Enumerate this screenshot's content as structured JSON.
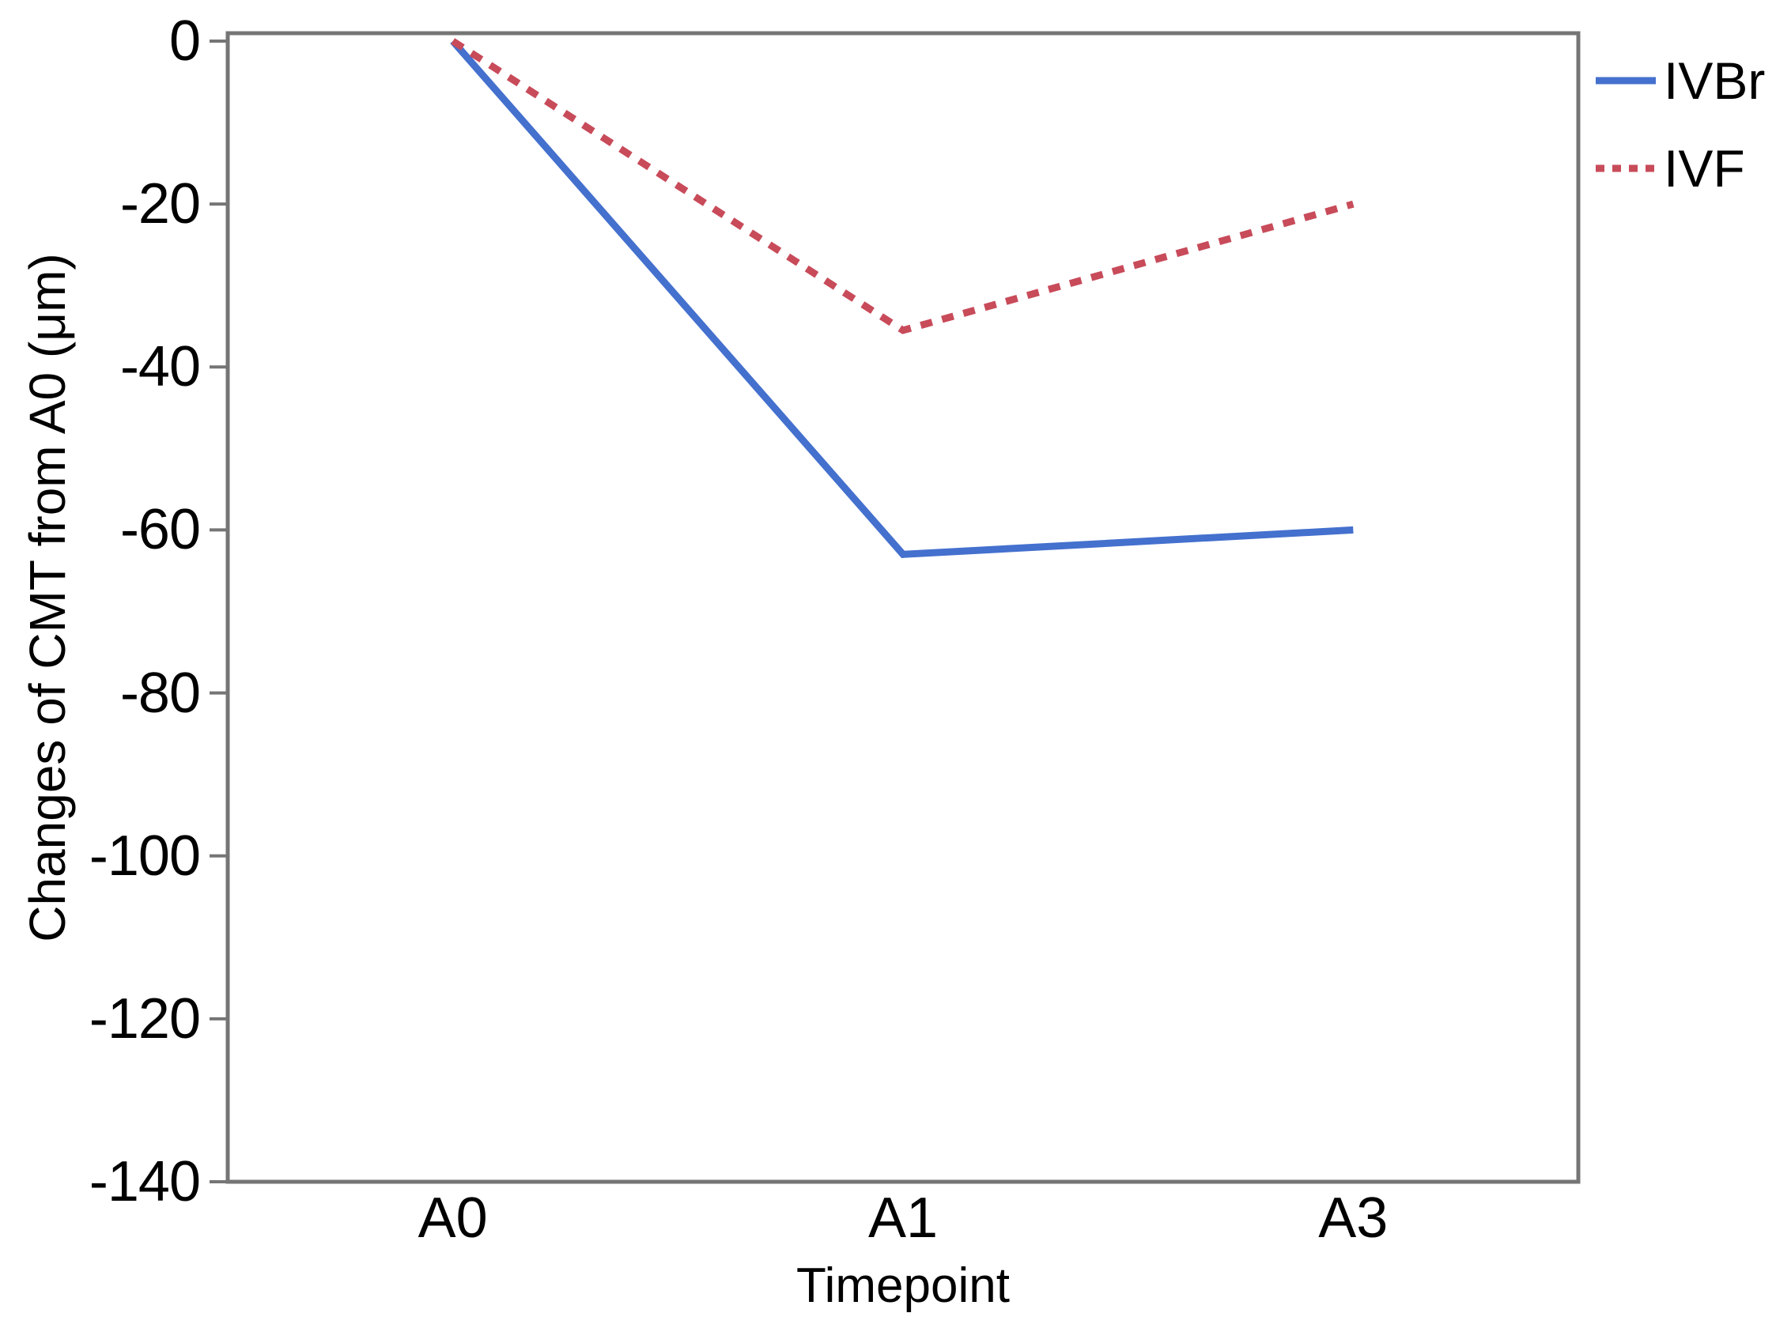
{
  "chart_data": {
    "type": "line",
    "categories": [
      "A0",
      "A1",
      "A3"
    ],
    "series": [
      {
        "name": "IVBr",
        "style": "solid",
        "color": "#4470CE",
        "values": [
          0,
          -63,
          -60
        ]
      },
      {
        "name": "IVF",
        "style": "dotted",
        "color": "#C84B5A",
        "values": [
          0,
          -35.5,
          -20
        ]
      }
    ],
    "title": "",
    "xlabel": "Timepoint",
    "ylabel": "Changes of CMT from A0 (μm)",
    "ylim": [
      -140,
      0
    ],
    "yticks": [
      0,
      -20,
      -40,
      -60,
      -80,
      -100,
      -120,
      -140
    ],
    "grid": false,
    "legend_position": "top-right-outside"
  },
  "axes": {
    "x_tick_labels": [
      "A0",
      "A1",
      "A3"
    ],
    "y_tick_labels": [
      "0",
      "-20",
      "-40",
      "-60",
      "-80",
      "-100",
      "-120",
      "-140"
    ]
  },
  "legend": {
    "items": [
      {
        "label": "IVBr"
      },
      {
        "label": "IVF"
      }
    ]
  },
  "colors": {
    "axis": "#757575",
    "text": "#000000",
    "background": "#FFFFFF",
    "ivbr_line": "#4470CE",
    "ivf_line": "#C84B5A"
  }
}
